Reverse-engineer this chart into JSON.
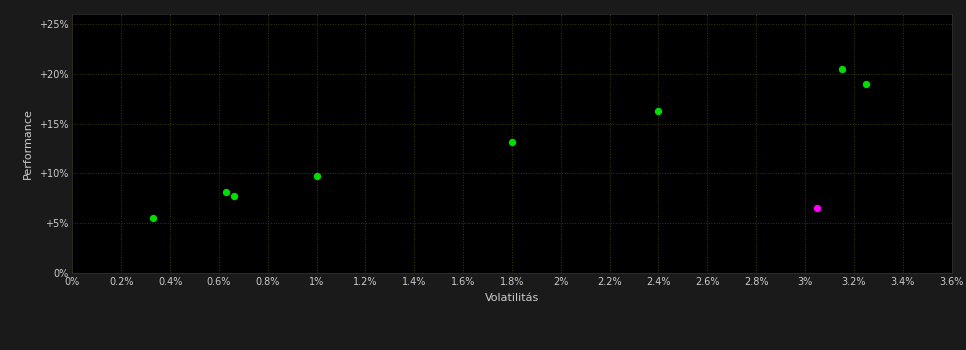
{
  "background_color": "#1a1a1a",
  "plot_bg_color": "#000000",
  "grid_color": "#3a3a00",
  "grid_style": ":",
  "grid_alpha": 1.0,
  "xlabel": "Volatilitás",
  "ylabel": "Performance",
  "xlabel_color": "#cccccc",
  "ylabel_color": "#cccccc",
  "tick_color": "#cccccc",
  "xlim": [
    0.0,
    0.036
  ],
  "ylim": [
    0.0,
    0.26
  ],
  "xticks": [
    0.0,
    0.002,
    0.004,
    0.006,
    0.008,
    0.01,
    0.012,
    0.014,
    0.016,
    0.018,
    0.02,
    0.022,
    0.024,
    0.026,
    0.028,
    0.03,
    0.032,
    0.034,
    0.036
  ],
  "yticks": [
    0.0,
    0.05,
    0.1,
    0.15,
    0.2,
    0.25
  ],
  "ytick_labels": [
    "0%",
    "+5%",
    "+10%",
    "+15%",
    "+20%",
    "+25%"
  ],
  "xtick_labels": [
    "0%",
    "0.2%",
    "0.4%",
    "0.6%",
    "0.8%",
    "1%",
    "1.2%",
    "1.4%",
    "1.6%",
    "1.8%",
    "2%",
    "2.2%",
    "2.4%",
    "2.6%",
    "2.8%",
    "3%",
    "3.2%",
    "3.4%",
    "3.6%"
  ],
  "green_points": [
    [
      0.0033,
      0.055
    ],
    [
      0.0063,
      0.081
    ],
    [
      0.0066,
      0.077
    ],
    [
      0.01,
      0.097
    ],
    [
      0.018,
      0.132
    ],
    [
      0.024,
      0.163
    ],
    [
      0.0315,
      0.205
    ],
    [
      0.0325,
      0.19
    ]
  ],
  "magenta_points": [
    [
      0.0305,
      0.065
    ]
  ],
  "green_color": "#00dd00",
  "magenta_color": "#ff00ff",
  "marker_size": 28
}
